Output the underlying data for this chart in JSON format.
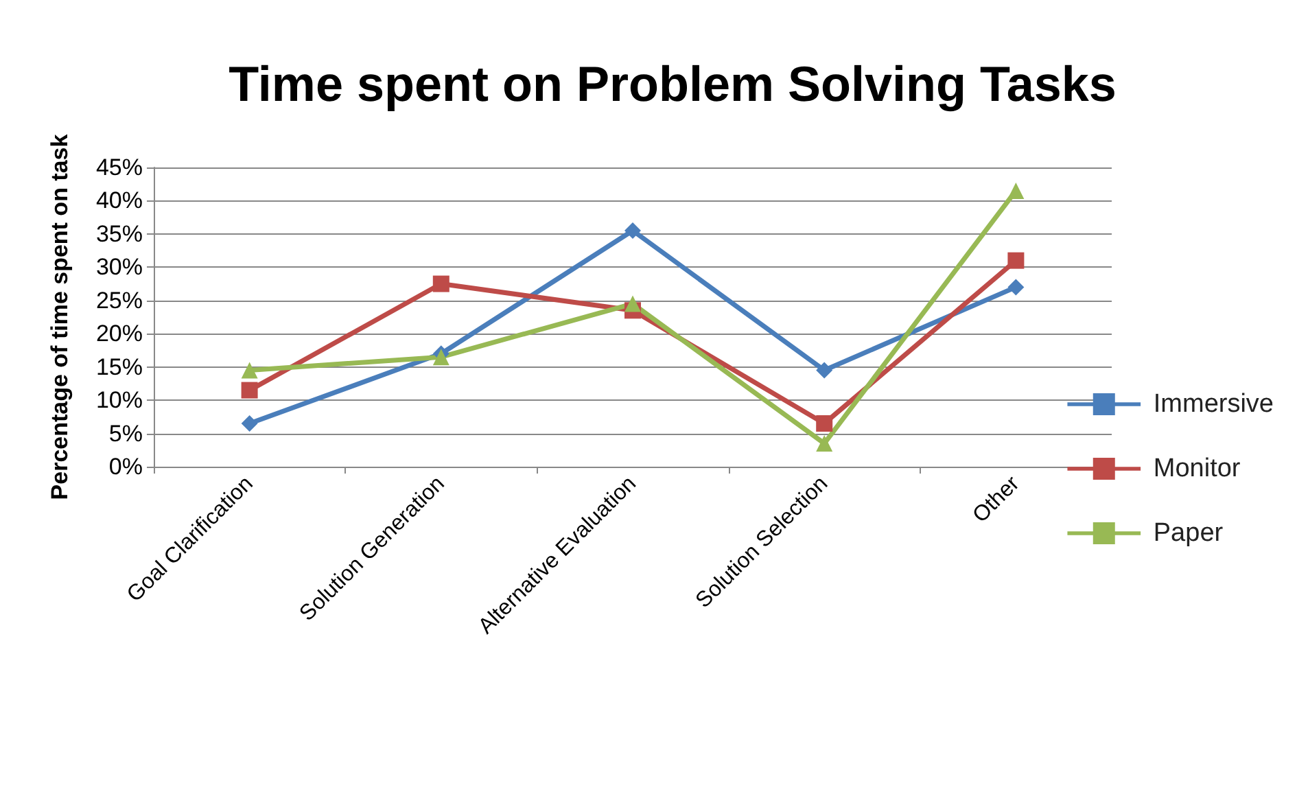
{
  "chart_data": {
    "type": "line",
    "title": "Time spent on Problem Solving Tasks",
    "ylabel": "Percentage of time spent on task",
    "categories": [
      "Goal Clarification",
      "Solution Generation",
      "Alternative Evaluation",
      "Solution Selection",
      "Other"
    ],
    "series": [
      {
        "name": "Immersive",
        "color": "#4a7ebb",
        "marker": "diamond",
        "values": [
          6.5,
          17,
          35.5,
          14.5,
          27
        ]
      },
      {
        "name": "Monitor",
        "color": "#be4b48",
        "marker": "square",
        "values": [
          11.5,
          27.5,
          23.5,
          6.5,
          31
        ]
      },
      {
        "name": "Paper",
        "color": "#98b954",
        "marker": "triangle",
        "values": [
          14.5,
          16.5,
          24.5,
          3.5,
          41.5
        ]
      }
    ],
    "ylim": [
      0,
      45
    ],
    "yticks": [
      {
        "value": 0,
        "label": "0%"
      },
      {
        "value": 5,
        "label": "5%"
      },
      {
        "value": 10,
        "label": "10%"
      },
      {
        "value": 15,
        "label": "15%"
      },
      {
        "value": 20,
        "label": "20%"
      },
      {
        "value": 25,
        "label": "25%"
      },
      {
        "value": 30,
        "label": "30%"
      },
      {
        "value": 35,
        "label": "35%"
      },
      {
        "value": 40,
        "label": "40%"
      },
      {
        "value": 45,
        "label": "45%"
      }
    ],
    "grid": "y",
    "legend": "right",
    "line_style": "solid"
  }
}
